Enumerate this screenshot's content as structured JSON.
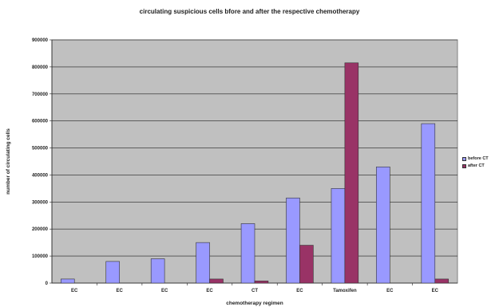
{
  "chart_data": {
    "type": "bar",
    "title": "circulating suspicious cells bfore and after the respective chemotherapy",
    "xlabel": "chemotherapy regimen",
    "ylabel": "number of circulating cells",
    "ylim": [
      0,
      900000
    ],
    "yticks": [
      "0",
      "100000",
      "200000",
      "300000",
      "400000",
      "500000",
      "600000",
      "700000",
      "800000",
      "900000"
    ],
    "categories": [
      "EC",
      "EC",
      "EC",
      "EC",
      "CT",
      "EC",
      "Tamoxifen",
      "EC",
      "EC"
    ],
    "series": [
      {
        "name": "before CT",
        "color": "#9999ff",
        "values": [
          15000,
          80000,
          90000,
          150000,
          220000,
          315000,
          350000,
          430000,
          590000
        ]
      },
      {
        "name": "after CT",
        "color": "#993366",
        "values": [
          0,
          0,
          0,
          15000,
          8000,
          140000,
          815000,
          0,
          15000
        ]
      }
    ],
    "grid": true,
    "legend_position": "right",
    "plot_background": "#c0c0c0"
  }
}
